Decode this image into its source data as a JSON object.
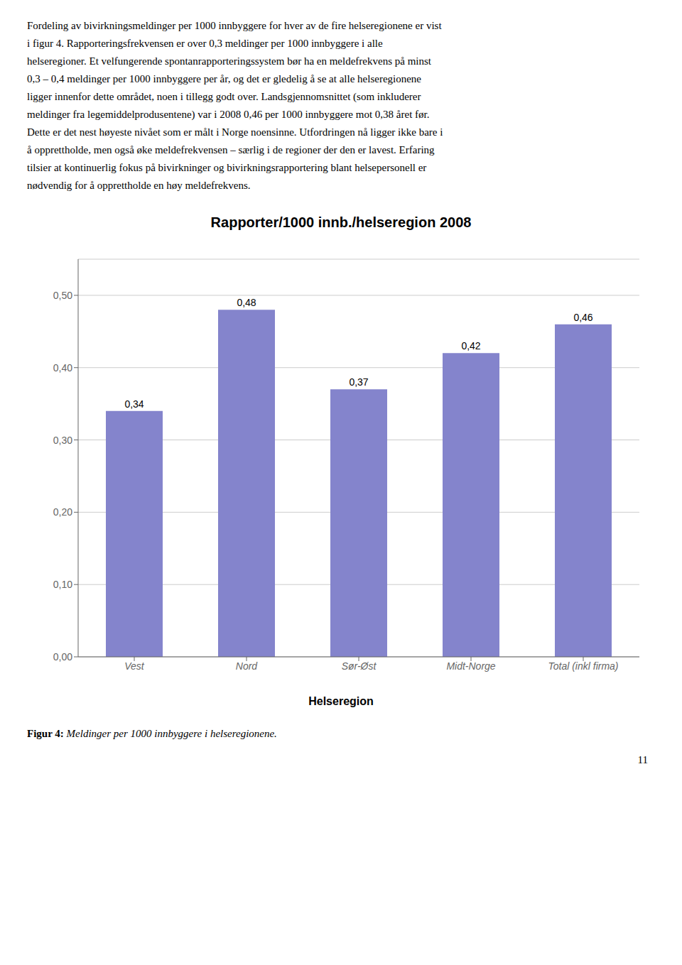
{
  "chart_data": {
    "type": "bar",
    "title": "Rapporter/1000 innb./helseregion 2008",
    "xlabel": "Helseregion",
    "categories": [
      "Vest",
      "Nord",
      "Sør-Øst",
      "Midt-Norge",
      "Total (inkl firma)"
    ],
    "values": [
      0.34,
      0.48,
      0.37,
      0.42,
      0.46
    ],
    "value_labels": [
      "0,34",
      "0,48",
      "0,37",
      "0,42",
      "0,46"
    ],
    "data_labels": true,
    "color": "#8484cc",
    "ylim": [
      0.0,
      0.55
    ],
    "yticks": [
      {
        "value": 0.0,
        "label": "0,00"
      },
      {
        "value": 0.1,
        "label": "0,10"
      },
      {
        "value": 0.2,
        "label": "0,20"
      },
      {
        "value": 0.3,
        "label": "0,30"
      },
      {
        "value": 0.4,
        "label": "0,40"
      },
      {
        "value": 0.5,
        "label": "0,50"
      }
    ],
    "grid": true,
    "annotations": [
      "Fordeling av bivirkningsmeldinger per 1000 innbyggere for hver av de fire helseregionene er vist",
      "i figur 4. Rapporteringsfrekvensen er over 0,3 meldinger per 1000 innbyggere i alle",
      "helseregioner. Et velfungerende spontanrapporteringssystem bør ha en meldefrekvens på minst",
      "0,3 – 0,4 meldinger per 1000 innbyggere per år, og det er gledelig å se at alle helseregionene",
      "ligger innenfor dette området, noen i tillegg godt over. Landsgjennomsnittet (som inkluderer",
      "meldinger fra legemiddelprodusentene) var i 2008 0,46 per 1000 innbyggere mot 0,38 året før.",
      "Dette er det nest høyeste nivået som er målt i Norge noensinne. Utfordringen nå ligger ikke bare i",
      "å opprettholde, men også øke meldefrekvensen – særlig i de regioner der den er lavest. Erfaring",
      "tilsier at kontinuerlig fokus på bivirkninger og bivirkningsrapportering blant helsepersonell er",
      "nødvendig for å opprettholde en høy meldefrekvens.",
      "Figur 4:",
      "Meldinger per 1000 innbyggere i helseregionene.",
      "11"
    ]
  }
}
